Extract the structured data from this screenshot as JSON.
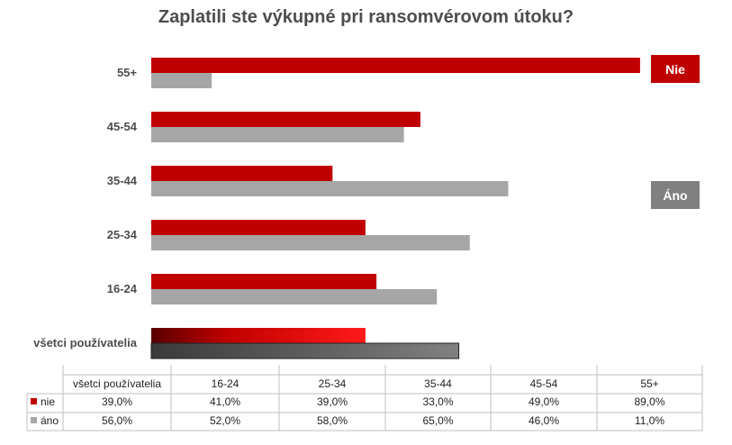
{
  "chart_data": {
    "type": "bar",
    "orientation": "horizontal",
    "title": "Zaplatili ste výkupné pri ransomvérovom útoku?",
    "categories": [
      "všetci používatelia",
      "16-24",
      "25-34",
      "35-44",
      "45-54",
      "55+"
    ],
    "series": [
      {
        "name": "nie",
        "color": "#c00000",
        "values": [
          39.0,
          41.0,
          39.0,
          33.0,
          49.0,
          89.0
        ]
      },
      {
        "name": "áno",
        "color": "#a6a6a6",
        "values": [
          56.0,
          52.0,
          58.0,
          65.0,
          46.0,
          11.0
        ]
      }
    ],
    "value_labels": {
      "nie": [
        "39,0%",
        "41,0%",
        "39,0%",
        "33,0%",
        "49,0%",
        "89,0%"
      ],
      "áno": [
        "56,0%",
        "52,0%",
        "58,0%",
        "65,0%",
        "46,0%",
        "11,0%"
      ]
    },
    "xlim": [
      0,
      100
    ],
    "grid": false,
    "data_table": true,
    "legend_labels": {
      "nie": "Nie",
      "ano": "Áno"
    },
    "legend_placement": "right"
  }
}
